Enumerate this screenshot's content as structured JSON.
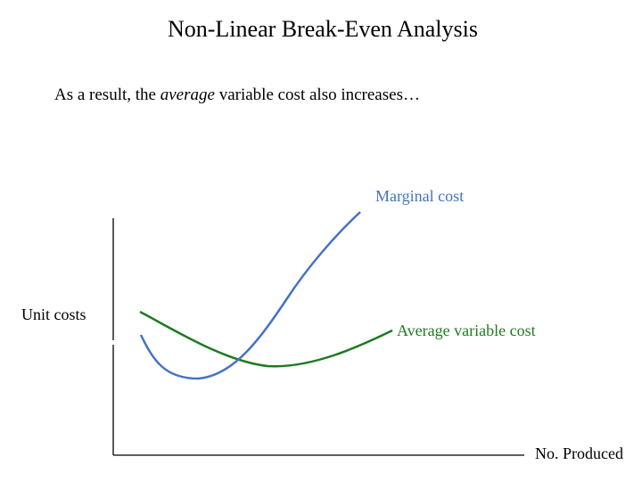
{
  "slide": {
    "title": "Non-Linear Break-Even Analysis",
    "subtitle_before": "As a result, the ",
    "subtitle_emphasis": "average",
    "subtitle_after": " variable cost also increases…"
  },
  "diagram": {
    "y_axis_label": "Unit costs",
    "x_axis_label": "No. Produced",
    "curves": [
      {
        "name": "Marginal cost",
        "color": "#4472c4"
      },
      {
        "name": "Average variable cost",
        "color": "#1f7a1f"
      }
    ]
  },
  "colors": {
    "axis": "#000000",
    "text": "#000000"
  }
}
